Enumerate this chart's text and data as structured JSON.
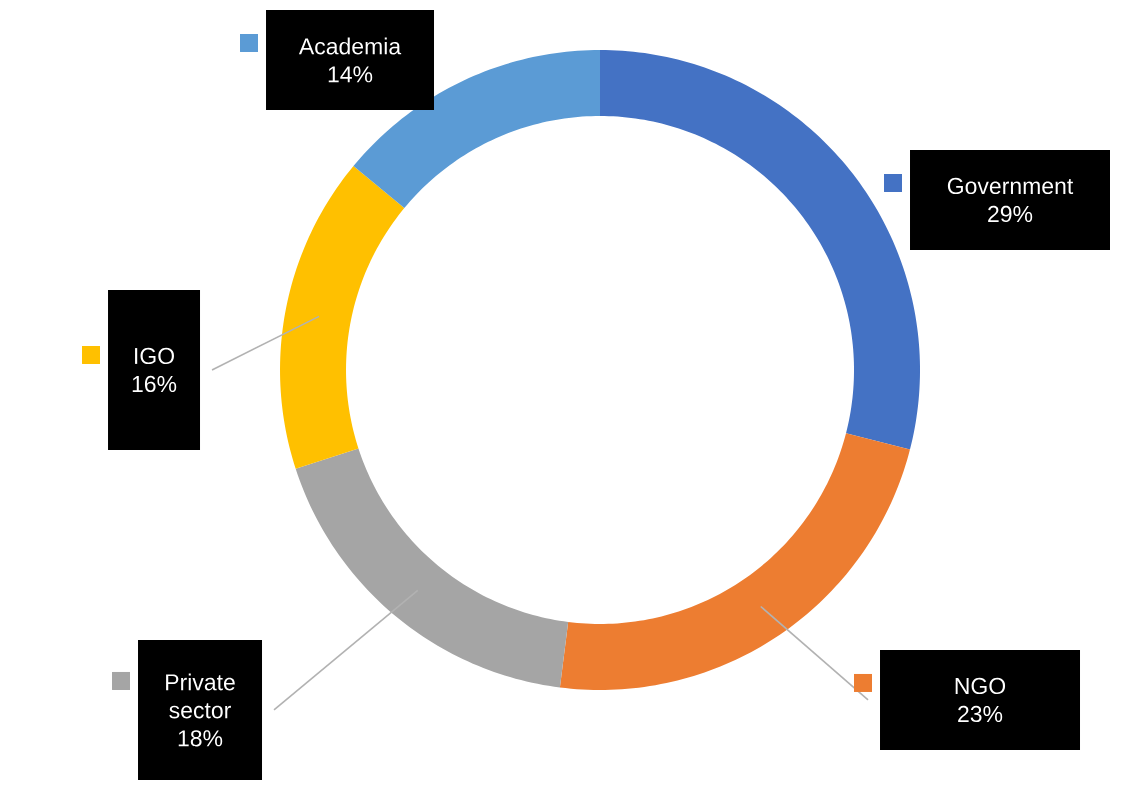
{
  "chart_data": {
    "type": "donut",
    "categories": [
      "Government",
      "NGO",
      "Private sector",
      "IGO",
      "Academia"
    ],
    "values": [
      29,
      23,
      18,
      16,
      14
    ],
    "value_labels": [
      "29%",
      "23%",
      "18%",
      "16%",
      "14%"
    ],
    "legend": "left",
    "colors": [
      "#4472c4",
      "#ed7d31",
      "#a5a5a5",
      "#ffc000",
      "#5b9bd5"
    ]
  }
}
